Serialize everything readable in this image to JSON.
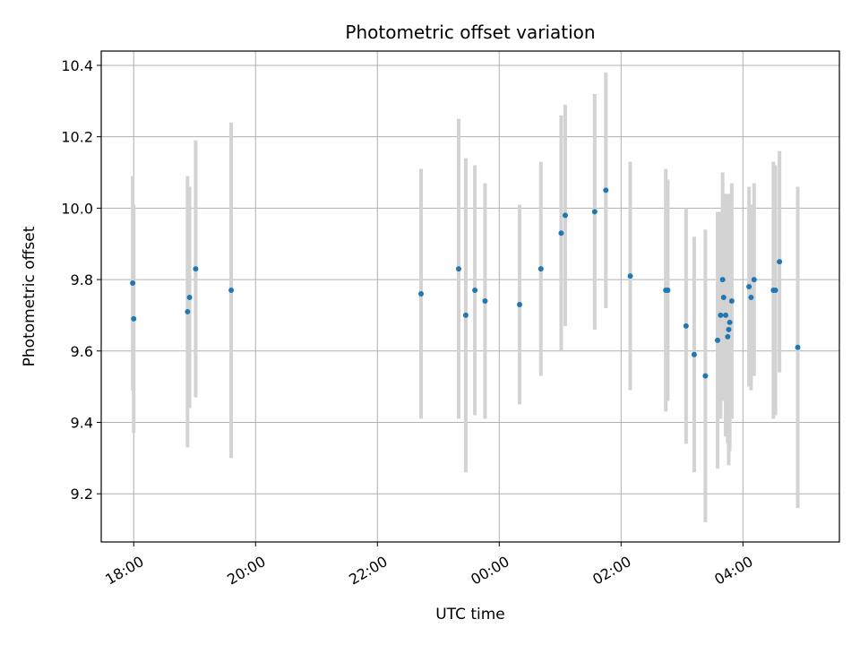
{
  "chart_data": {
    "type": "scatter",
    "title": "Photometric offset variation",
    "xlabel": "UTC time",
    "ylabel": "Photometric offset",
    "grid": true,
    "x_tick_labels": [
      "18:00",
      "20:00",
      "22:00",
      "00:00",
      "02:00",
      "04:00"
    ],
    "y_tick_labels": [
      "9.2",
      "9.4",
      "9.6",
      "9.8",
      "10.0",
      "10.2",
      "10.4"
    ],
    "xlim": [
      "17:28",
      "05:35"
    ],
    "ylim": [
      9.065,
      10.44
    ],
    "point_color": "#1f77b4",
    "errorbar_color": "#d3d3d3",
    "series": [
      {
        "points": [
          {
            "x": "17:59",
            "y": 9.79,
            "yerr": 0.3
          },
          {
            "x": "18:00",
            "y": 9.69,
            "yerr": 0.32
          },
          {
            "x": "18:53",
            "y": 9.71,
            "yerr": 0.38
          },
          {
            "x": "18:55",
            "y": 9.75,
            "yerr": 0.31
          },
          {
            "x": "19:01",
            "y": 9.83,
            "yerr": 0.36
          },
          {
            "x": "19:36",
            "y": 9.77,
            "yerr": 0.47
          },
          {
            "x": "22:43",
            "y": 9.76,
            "yerr": 0.35
          },
          {
            "x": "23:20",
            "y": 9.83,
            "yerr": 0.42
          },
          {
            "x": "23:27",
            "y": 9.7,
            "yerr": 0.44
          },
          {
            "x": "23:36",
            "y": 9.77,
            "yerr": 0.35
          },
          {
            "x": "23:46",
            "y": 9.74,
            "yerr": 0.33
          },
          {
            "x": "00:20",
            "y": 9.73,
            "yerr": 0.28
          },
          {
            "x": "00:41",
            "y": 9.83,
            "yerr": 0.3
          },
          {
            "x": "01:01",
            "y": 9.93,
            "yerr": 0.33
          },
          {
            "x": "01:05",
            "y": 9.98,
            "yerr": 0.31
          },
          {
            "x": "01:34",
            "y": 9.99,
            "yerr": 0.33
          },
          {
            "x": "01:45",
            "y": 10.05,
            "yerr": 0.33
          },
          {
            "x": "02:09",
            "y": 9.81,
            "yerr": 0.32
          },
          {
            "x": "02:44",
            "y": 9.77,
            "yerr": 0.34
          },
          {
            "x": "02:46",
            "y": 9.77,
            "yerr": 0.31
          },
          {
            "x": "03:04",
            "y": 9.67,
            "yerr": 0.33
          },
          {
            "x": "03:12",
            "y": 9.59,
            "yerr": 0.33
          },
          {
            "x": "03:23",
            "y": 9.53,
            "yerr": 0.41
          },
          {
            "x": "03:35",
            "y": 9.63,
            "yerr": 0.36
          },
          {
            "x": "03:38",
            "y": 9.7,
            "yerr": 0.29
          },
          {
            "x": "03:40",
            "y": 9.8,
            "yerr": 0.3
          },
          {
            "x": "03:41",
            "y": 9.75,
            "yerr": 0.29
          },
          {
            "x": "03:43",
            "y": 9.7,
            "yerr": 0.34
          },
          {
            "x": "03:45",
            "y": 9.64,
            "yerr": 0.3
          },
          {
            "x": "03:46",
            "y": 9.66,
            "yerr": 0.38
          },
          {
            "x": "03:47",
            "y": 9.68,
            "yerr": 0.36
          },
          {
            "x": "03:49",
            "y": 9.74,
            "yerr": 0.33
          },
          {
            "x": "04:06",
            "y": 9.78,
            "yerr": 0.28
          },
          {
            "x": "04:08",
            "y": 9.75,
            "yerr": 0.26
          },
          {
            "x": "04:11",
            "y": 9.8,
            "yerr": 0.27
          },
          {
            "x": "04:30",
            "y": 9.77,
            "yerr": 0.36
          },
          {
            "x": "04:32",
            "y": 9.77,
            "yerr": 0.35
          },
          {
            "x": "04:36",
            "y": 9.85,
            "yerr": 0.31
          },
          {
            "x": "04:54",
            "y": 9.61,
            "yerr": 0.45
          }
        ]
      }
    ]
  }
}
